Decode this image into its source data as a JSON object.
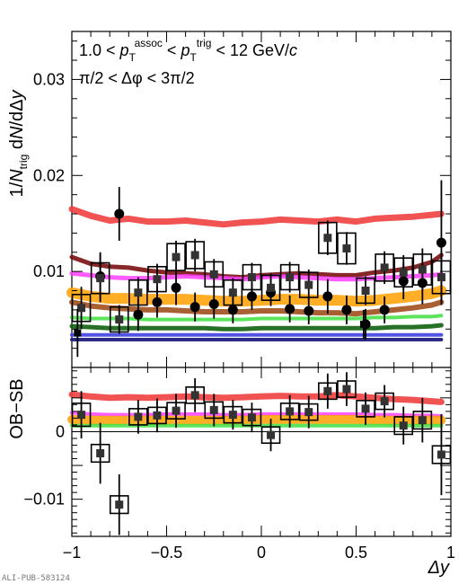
{
  "chart_data": [
    {
      "type": "scatter",
      "panel": "top",
      "xlim": [
        -1,
        1
      ],
      "ylim": [
        0,
        0.035
      ],
      "x_ticks": [
        -1,
        -0.5,
        0,
        0.5,
        1
      ],
      "x_tick_labels": [
        "",
        "",
        "",
        "",
        ""
      ],
      "y_ticks": [
        0.01,
        0.02,
        0.03
      ],
      "y_tick_labels": [
        "0.01",
        "0.02",
        "0.03"
      ],
      "ylabel": "1/N_trig dN/dΔy",
      "annotations": [
        {
          "text": "1.0 < p_T^assoc < p_T^trig < 12 GeV/c"
        },
        {
          "text": "π/2 < Δφ < 3π/2"
        }
      ],
      "bands": [
        {
          "color": "#f04040",
          "opacity": 0.9,
          "width": 7,
          "x": [
            -1,
            -0.9,
            -0.8,
            -0.7,
            -0.6,
            -0.5,
            -0.4,
            -0.3,
            -0.2,
            -0.1,
            0,
            0.1,
            0.2,
            0.3,
            0.4,
            0.5,
            0.6,
            0.7,
            0.8,
            0.9,
            0.95
          ],
          "y": [
            0.0165,
            0.0158,
            0.0153,
            0.0155,
            0.0152,
            0.0152,
            0.0153,
            0.0151,
            0.0149,
            0.0151,
            0.0152,
            0.0154,
            0.0153,
            0.0152,
            0.0154,
            0.0152,
            0.0155,
            0.0156,
            0.0157,
            0.0159,
            0.016
          ]
        },
        {
          "color": "#7a1010",
          "opacity": 0.9,
          "width": 5,
          "x": [
            -1,
            -0.9,
            -0.8,
            -0.7,
            -0.6,
            -0.5,
            -0.4,
            -0.3,
            -0.2,
            -0.1,
            0,
            0.1,
            0.2,
            0.3,
            0.4,
            0.5,
            0.6,
            0.7,
            0.8,
            0.9,
            0.95
          ],
          "y": [
            0.0115,
            0.0108,
            0.0105,
            0.0104,
            0.0101,
            0.0099,
            0.0098,
            0.0097,
            0.0095,
            0.0094,
            0.0096,
            0.0097,
            0.0098,
            0.0097,
            0.0096,
            0.0096,
            0.0099,
            0.0101,
            0.0104,
            0.011,
            0.0117
          ]
        },
        {
          "color": "#ff40ff",
          "opacity": 0.85,
          "width": 5,
          "x": [
            -1,
            -0.9,
            -0.8,
            -0.7,
            -0.6,
            -0.5,
            -0.4,
            -0.3,
            -0.2,
            -0.1,
            0,
            0.1,
            0.2,
            0.3,
            0.4,
            0.5,
            0.6,
            0.7,
            0.8,
            0.9,
            0.95
          ],
          "y": [
            0.0098,
            0.0096,
            0.0094,
            0.0093,
            0.0093,
            0.0094,
            0.0095,
            0.0094,
            0.0093,
            0.0092,
            0.0094,
            0.0095,
            0.0094,
            0.0093,
            0.0092,
            0.0092,
            0.0093,
            0.0094,
            0.0095,
            0.0096,
            0.0097
          ]
        },
        {
          "color": "#ffa000",
          "opacity": 0.85,
          "width": 12,
          "x": [
            -1,
            -0.9,
            -0.8,
            -0.7,
            -0.6,
            -0.5,
            -0.4,
            -0.3,
            -0.2,
            -0.1,
            0,
            0.1,
            0.2,
            0.3,
            0.4,
            0.5,
            0.6,
            0.7,
            0.8,
            0.9,
            0.95
          ],
          "y": [
            0.0078,
            0.0074,
            0.0072,
            0.0072,
            0.0071,
            0.0071,
            0.0071,
            0.007,
            0.0069,
            0.0069,
            0.007,
            0.0071,
            0.0071,
            0.007,
            0.007,
            0.0069,
            0.007,
            0.0072,
            0.0074,
            0.0077,
            0.008
          ]
        },
        {
          "color": "#a0501e",
          "opacity": 0.9,
          "width": 6,
          "x": [
            -1,
            -0.9,
            -0.8,
            -0.7,
            -0.6,
            -0.5,
            -0.4,
            -0.3,
            -0.2,
            -0.1,
            0,
            0.1,
            0.2,
            0.3,
            0.4,
            0.5,
            0.6,
            0.7,
            0.8,
            0.9,
            0.95
          ],
          "y": [
            0.0068,
            0.0064,
            0.0062,
            0.0061,
            0.006,
            0.006,
            0.0059,
            0.0058,
            0.0058,
            0.0058,
            0.0059,
            0.0059,
            0.0058,
            0.0057,
            0.0057,
            0.0056,
            0.0058,
            0.006,
            0.0062,
            0.0065,
            0.0068
          ]
        },
        {
          "color": "#40e040",
          "opacity": 0.85,
          "width": 4,
          "x": [
            -1,
            -0.9,
            -0.8,
            -0.7,
            -0.6,
            -0.5,
            -0.4,
            -0.3,
            -0.2,
            -0.1,
            0,
            0.1,
            0.2,
            0.3,
            0.4,
            0.5,
            0.6,
            0.7,
            0.8,
            0.9,
            0.95
          ],
          "y": [
            0.0052,
            0.0051,
            0.0051,
            0.0051,
            0.005,
            0.005,
            0.005,
            0.005,
            0.005,
            0.005,
            0.0051,
            0.0051,
            0.0051,
            0.0051,
            0.0051,
            0.0051,
            0.0052,
            0.0052,
            0.0053,
            0.0053,
            0.0054
          ]
        },
        {
          "color": "#106010",
          "opacity": 0.9,
          "width": 5,
          "x": [
            -1,
            -0.9,
            -0.8,
            -0.7,
            -0.6,
            -0.5,
            -0.4,
            -0.3,
            -0.2,
            -0.1,
            0,
            0.1,
            0.2,
            0.3,
            0.4,
            0.5,
            0.6,
            0.7,
            0.8,
            0.9,
            0.95
          ],
          "y": [
            0.0043,
            0.0042,
            0.0041,
            0.0041,
            0.0041,
            0.0041,
            0.0041,
            0.0041,
            0.004,
            0.004,
            0.0041,
            0.0041,
            0.0041,
            0.0041,
            0.0041,
            0.0041,
            0.0041,
            0.0042,
            0.0042,
            0.0043,
            0.0044
          ]
        },
        {
          "color": "#4040e0",
          "opacity": 0.9,
          "width": 4,
          "x": [
            -1,
            -0.9,
            -0.8,
            -0.7,
            -0.6,
            -0.5,
            -0.4,
            -0.3,
            -0.2,
            -0.1,
            0,
            0.1,
            0.2,
            0.3,
            0.4,
            0.5,
            0.6,
            0.7,
            0.8,
            0.9,
            0.95
          ],
          "y": [
            0.0034,
            0.0034,
            0.0034,
            0.0034,
            0.0034,
            0.0034,
            0.0034,
            0.0034,
            0.0034,
            0.0034,
            0.0034,
            0.0034,
            0.0034,
            0.0034,
            0.0034,
            0.0034,
            0.0034,
            0.0034,
            0.0034,
            0.0034,
            0.0034
          ]
        },
        {
          "color": "#202080",
          "opacity": 0.95,
          "width": 4,
          "x": [
            -1,
            -0.9,
            -0.8,
            -0.7,
            -0.6,
            -0.5,
            -0.4,
            -0.3,
            -0.2,
            -0.1,
            0,
            0.1,
            0.2,
            0.3,
            0.4,
            0.5,
            0.6,
            0.7,
            0.8,
            0.9,
            0.95
          ],
          "y": [
            0.0029,
            0.0029,
            0.0029,
            0.0029,
            0.0029,
            0.0029,
            0.0029,
            0.0029,
            0.0029,
            0.0029,
            0.0029,
            0.0029,
            0.0029,
            0.0029,
            0.0029,
            0.0029,
            0.0029,
            0.0029,
            0.0029,
            0.0029,
            0.0029
          ]
        }
      ],
      "series": [
        {
          "marker": "circle",
          "x": [
            -0.85,
            -0.75,
            -0.65,
            -0.55,
            -0.45,
            -0.35,
            -0.25,
            -0.15,
            -0.05,
            0.05,
            0.15,
            0.25,
            0.35,
            0.45,
            0.55,
            0.65,
            0.75,
            0.85,
            0.95
          ],
          "y": [
            0.0095,
            0.016,
            0.0055,
            0.0068,
            0.0083,
            0.0063,
            0.0066,
            0.006,
            0.0074,
            0.0078,
            0.0061,
            0.0059,
            0.0074,
            0.006,
            0.0045,
            0.006,
            0.009,
            0.0088,
            0.013
          ],
          "err": [
            0.0025,
            0.0028,
            0.0017,
            0.0016,
            0.0018,
            0.0015,
            0.0015,
            0.0014,
            0.0014,
            0.0014,
            0.0014,
            0.0014,
            0.0018,
            0.0015,
            0.0016,
            0.0014,
            0.0019,
            0.0022,
            0.0065
          ]
        },
        {
          "marker": "square",
          "x": [
            -0.95,
            -0.85,
            -0.75,
            -0.65,
            -0.55,
            -0.45,
            -0.35,
            -0.25,
            -0.15,
            -0.05,
            0.05,
            0.15,
            0.25,
            0.35,
            0.45,
            0.55,
            0.65,
            0.75,
            0.85,
            0.95
          ],
          "y": [
            0.0062,
            0.0093,
            0.005,
            0.0078,
            0.0092,
            0.0115,
            0.0117,
            0.0097,
            0.0078,
            0.0094,
            0.0083,
            0.0094,
            0.0086,
            0.0135,
            0.0124,
            0.008,
            0.0104,
            0.0099,
            0.0102,
            0.0094
          ],
          "err": [
            0.0022,
            0.0025,
            0.0015,
            0.0016,
            0.0016,
            0.0017,
            0.0017,
            0.0016,
            0.0015,
            0.0015,
            0.0015,
            0.0016,
            0.0016,
            0.0018,
            0.0017,
            0.0015,
            0.0017,
            0.0018,
            0.0022,
            0.0027
          ],
          "box": [
            0.0014,
            0.0016,
            0.0013,
            0.0013,
            0.0013,
            0.0014,
            0.0014,
            0.0013,
            0.0013,
            0.0013,
            0.0013,
            0.0013,
            0.0013,
            0.0016,
            0.0016,
            0.0013,
            0.0014,
            0.0015,
            0.0016,
            0.0017
          ]
        },
        {
          "marker": "square-small",
          "x": [
            -0.97,
            0.54
          ],
          "y": [
            0.0036,
            0.0045
          ],
          "err": [
            0.0025,
            0.0015
          ]
        }
      ]
    },
    {
      "type": "scatter",
      "panel": "bottom",
      "xlim": [
        -1,
        1
      ],
      "ylim": [
        -0.0155,
        0.0095
      ],
      "x_ticks": [
        -1,
        -0.5,
        0,
        0.5,
        1
      ],
      "x_tick_labels": [
        "−1",
        "−0.5",
        "0",
        "0.5",
        "1"
      ],
      "y_ticks": [
        -0.01,
        0
      ],
      "y_tick_labels": [
        "−0.01",
        "0"
      ],
      "ylabel": "OB−SB",
      "xlabel": "Δy",
      "bands": [
        {
          "color": "#f04040",
          "opacity": 0.9,
          "width": 7,
          "x": [
            -1,
            -0.9,
            -0.8,
            -0.7,
            -0.6,
            -0.5,
            -0.4,
            -0.3,
            -0.2,
            -0.1,
            0,
            0.1,
            0.2,
            0.3,
            0.4,
            0.5,
            0.6,
            0.7,
            0.8,
            0.9,
            0.95
          ],
          "y": [
            0.0055,
            0.0052,
            0.005,
            0.0051,
            0.005,
            0.0051,
            0.0052,
            0.0051,
            0.005,
            0.0051,
            0.0052,
            0.0053,
            0.0052,
            0.0052,
            0.0054,
            0.0052,
            0.005,
            0.0048,
            0.0047,
            0.0045,
            0.0044
          ]
        },
        {
          "color": "#ff40ff",
          "opacity": 0.85,
          "width": 4,
          "x": [
            -1,
            -0.9,
            -0.8,
            -0.7,
            -0.6,
            -0.5,
            -0.4,
            -0.3,
            -0.2,
            -0.1,
            0,
            0.1,
            0.2,
            0.3,
            0.4,
            0.5,
            0.6,
            0.7,
            0.8,
            0.9,
            0.95
          ],
          "y": [
            0.0028,
            0.0026,
            0.0025,
            0.0025,
            0.0025,
            0.0026,
            0.0026,
            0.0026,
            0.0025,
            0.0025,
            0.0026,
            0.0026,
            0.0026,
            0.0026,
            0.0026,
            0.0026,
            0.0025,
            0.0025,
            0.0024,
            0.0024,
            0.0023
          ]
        },
        {
          "color": "#ffa000",
          "opacity": 0.85,
          "width": 10,
          "x": [
            -1,
            -0.9,
            -0.8,
            -0.7,
            -0.6,
            -0.5,
            -0.4,
            -0.3,
            -0.2,
            -0.1,
            0,
            0.1,
            0.2,
            0.3,
            0.4,
            0.5,
            0.6,
            0.7,
            0.8,
            0.9,
            0.95
          ],
          "y": [
            0.0018,
            0.0017,
            0.0017,
            0.0017,
            0.0017,
            0.0017,
            0.0017,
            0.0017,
            0.0017,
            0.0017,
            0.0018,
            0.0018,
            0.0018,
            0.0018,
            0.0018,
            0.0018,
            0.0017,
            0.0017,
            0.0017,
            0.0017,
            0.0017
          ]
        },
        {
          "color": "#40e040",
          "opacity": 0.85,
          "width": 4,
          "x": [
            -1,
            -0.9,
            -0.8,
            -0.7,
            -0.6,
            -0.5,
            -0.4,
            -0.3,
            -0.2,
            -0.1,
            0,
            0.1,
            0.2,
            0.3,
            0.4,
            0.5,
            0.6,
            0.7,
            0.8,
            0.9,
            0.95
          ],
          "y": [
            0.0009,
            0.0009,
            0.0009,
            0.0009,
            0.0009,
            0.0009,
            0.0009,
            0.0009,
            0.0009,
            0.0009,
            0.0009,
            0.0009,
            0.0009,
            0.0009,
            0.0009,
            0.0009,
            0.0009,
            0.0009,
            0.0009,
            0.0009,
            0.0009
          ]
        }
      ],
      "series": [
        {
          "marker": "square",
          "x": [
            -0.95,
            -0.85,
            -0.75,
            -0.65,
            -0.55,
            -0.45,
            -0.35,
            -0.25,
            -0.15,
            -0.05,
            0.05,
            0.15,
            0.25,
            0.35,
            0.45,
            0.55,
            0.65,
            0.75,
            0.85,
            0.95
          ],
          "y": [
            0.0025,
            -0.0032,
            -0.0108,
            0.0022,
            0.0024,
            0.0031,
            0.0054,
            0.0032,
            0.0025,
            0.0021,
            -0.0005,
            0.003,
            0.0029,
            0.006,
            0.0063,
            0.0034,
            0.0045,
            0.0009,
            0.0017,
            -0.0034
          ],
          "err": [
            0.0035,
            0.0045,
            0.0045,
            0.0025,
            0.0025,
            0.0025,
            0.0025,
            0.0024,
            0.0022,
            0.0022,
            0.0024,
            0.0024,
            0.0024,
            0.0026,
            0.0025,
            0.0024,
            0.0024,
            0.0028,
            0.0033,
            0.006
          ],
          "box": [
            0.0017,
            0.0013,
            0.0013,
            0.0012,
            0.0012,
            0.0012,
            0.0012,
            0.0012,
            0.0012,
            0.0012,
            0.0012,
            0.0012,
            0.0012,
            0.0012,
            0.0012,
            0.0012,
            0.0012,
            0.0013,
            0.0013,
            0.0013
          ]
        }
      ]
    }
  ],
  "watermark": "ALI-PUB-583124"
}
